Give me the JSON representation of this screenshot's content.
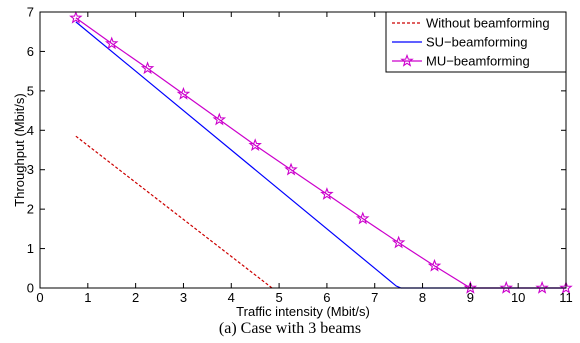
{
  "caption": "(a) Case with 3 beams",
  "chart_data": {
    "type": "line",
    "title": "",
    "xlabel": "Traffic intensity (Mbit/s)",
    "ylabel": "Throughput (Mbit/s)",
    "xlim": [
      0,
      11
    ],
    "ylim": [
      0,
      7
    ],
    "xticks": [
      0,
      1,
      2,
      3,
      4,
      5,
      6,
      7,
      8,
      9,
      10,
      11
    ],
    "yticks": [
      0,
      1,
      2,
      3,
      4,
      5,
      6,
      7
    ],
    "grid": false,
    "legend_position": "top-right",
    "series": [
      {
        "name": "Without beamforming",
        "color": "#cc0000",
        "dash": true,
        "marker": "none",
        "x": [
          0.75,
          4.8,
          4.85
        ],
        "y": [
          3.85,
          0.05,
          0
        ]
      },
      {
        "name": "SU−beamforming",
        "color": "#0000ff",
        "dash": false,
        "marker": "none",
        "x": [
          0.75,
          7.45,
          7.55,
          11
        ],
        "y": [
          6.75,
          0.05,
          0,
          0
        ]
      },
      {
        "name": "MU−beamforming",
        "color": "#cc00cc",
        "dash": false,
        "marker": "star",
        "x": [
          0.75,
          1.5,
          2.25,
          3.0,
          3.75,
          4.5,
          5.25,
          6.0,
          6.75,
          7.5,
          8.25,
          9.0,
          9.75,
          10.5,
          11.0
        ],
        "y": [
          6.85,
          6.2,
          5.57,
          4.92,
          4.27,
          3.62,
          3.0,
          2.38,
          1.76,
          1.15,
          0.56,
          0,
          0,
          0,
          0
        ]
      }
    ]
  }
}
